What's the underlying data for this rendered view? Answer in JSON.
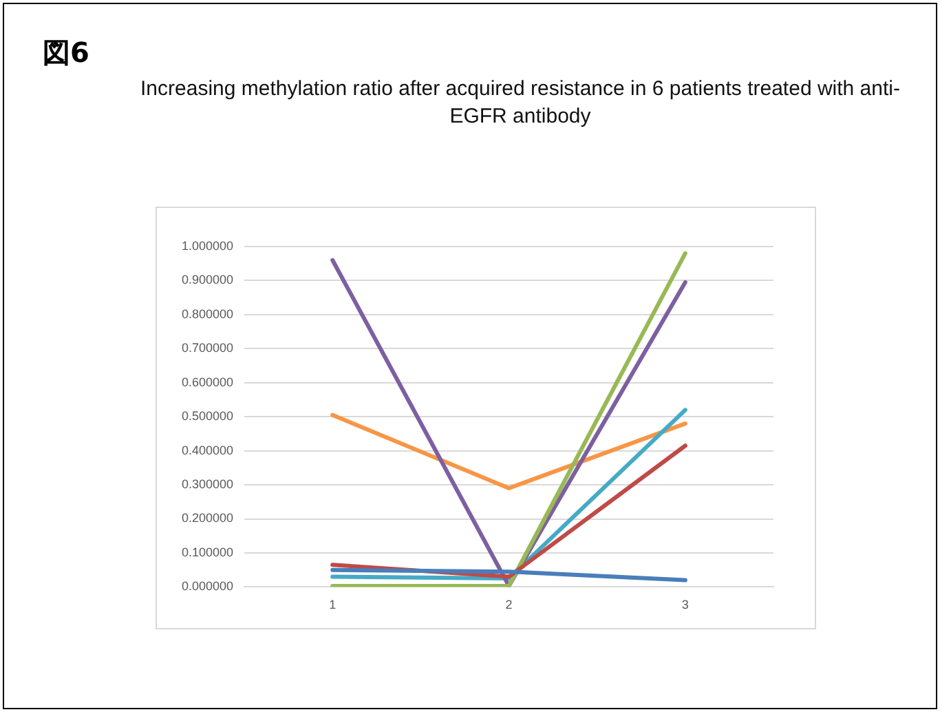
{
  "chart_data": {
    "type": "line",
    "title": "Increasing methylation ratio after acquired resistance in 6 patients treated with anti-EGFR antibody",
    "annotations": [
      "図6"
    ],
    "categories": [
      "1",
      "2",
      "3"
    ],
    "series": [
      {
        "color": "#4a7ebb",
        "values": [
          0.05,
          0.045,
          0.02
        ]
      },
      {
        "color": "#be4b48",
        "values": [
          0.065,
          0.03,
          0.415
        ]
      },
      {
        "color": "#98b954",
        "values": [
          0.003,
          0.003,
          0.98
        ]
      },
      {
        "color": "#7d60a0",
        "values": [
          0.96,
          0.003,
          0.895
        ]
      },
      {
        "color": "#46aac5",
        "values": [
          0.03,
          0.025,
          0.52
        ]
      },
      {
        "color": "#f79646",
        "values": [
          0.505,
          0.29,
          0.48
        ]
      }
    ],
    "ylim": [
      0,
      1
    ],
    "yticks": [
      {
        "value": 0,
        "label": "0.000000"
      },
      {
        "value": 0.1,
        "label": "0.100000"
      },
      {
        "value": 0.2,
        "label": "0.200000"
      },
      {
        "value": 0.3,
        "label": "0.300000"
      },
      {
        "value": 0.4,
        "label": "0.400000"
      },
      {
        "value": 0.5,
        "label": "0.500000"
      },
      {
        "value": 0.6,
        "label": "0.600000"
      },
      {
        "value": 0.7,
        "label": "0.700000"
      },
      {
        "value": 0.8,
        "label": "0.800000"
      },
      {
        "value": 0.9,
        "label": "0.900000"
      },
      {
        "value": 1,
        "label": "1.000000"
      }
    ],
    "grid": "y",
    "legend": false,
    "marker": "none",
    "line_style": "solid"
  }
}
